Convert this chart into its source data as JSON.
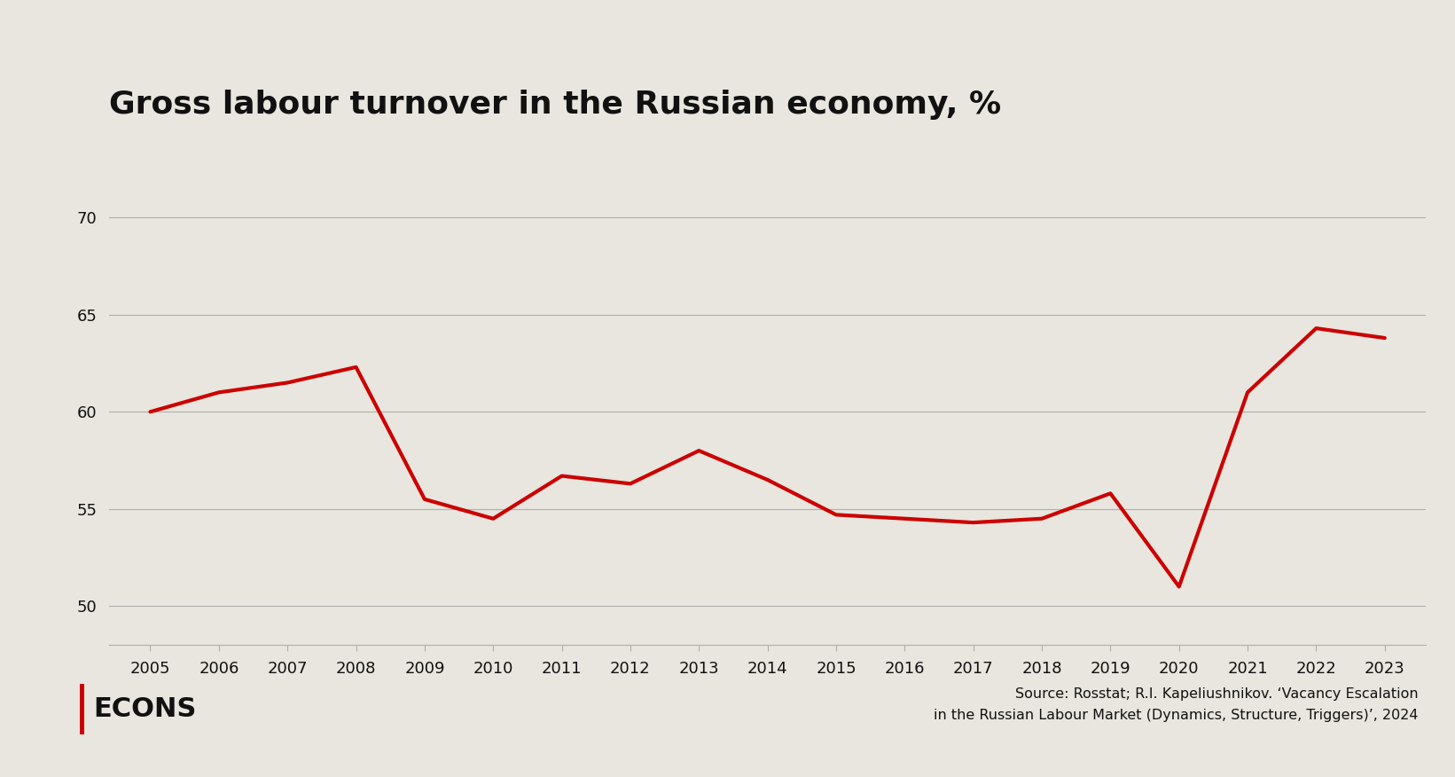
{
  "title": "Gross labour turnover in the Russian economy, %",
  "years": [
    2005,
    2006,
    2007,
    2008,
    2009,
    2010,
    2011,
    2012,
    2013,
    2014,
    2015,
    2016,
    2017,
    2018,
    2019,
    2020,
    2021,
    2022,
    2023
  ],
  "values": [
    60.0,
    61.0,
    61.5,
    62.3,
    55.5,
    54.5,
    56.7,
    56.3,
    58.0,
    56.5,
    54.7,
    54.5,
    54.3,
    54.5,
    55.8,
    51.0,
    61.0,
    64.3,
    63.8
  ],
  "line_color": "#cc0000",
  "background_color": "#e8e6de",
  "grid_color": "#b0afab",
  "text_color": "#111111",
  "ylim": [
    48,
    72
  ],
  "yticks": [
    50,
    55,
    60,
    65,
    70
  ],
  "line_width": 3.0,
  "title_fontsize": 26,
  "tick_fontsize": 13,
  "source_text": "Source: Rosstat; R.I. Kapeliushnikov. ‘Vacancy Escalation\nin the Russian Labour Market (Dynamics, Structure, Triggers)’, 2024",
  "logo_text": "ECONS",
  "logo_bar_color": "#cc0000"
}
